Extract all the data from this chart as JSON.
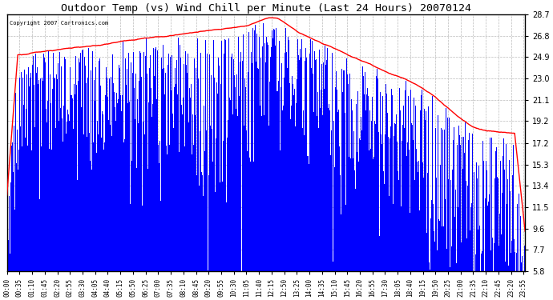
{
  "title": "Outdoor Temp (vs) Wind Chill per Minute (Last 24 Hours) 20070124",
  "copyright": "Copyright 2007 Cartronics.com",
  "yticks": [
    5.8,
    7.7,
    9.6,
    11.5,
    13.4,
    15.3,
    17.2,
    19.2,
    21.1,
    23.0,
    24.9,
    26.8,
    28.7
  ],
  "ymin": 5.8,
  "ymax": 28.7,
  "bg_color": "#FFFFFF",
  "bar_color": "#0000FF",
  "line_color": "#FF0000",
  "grid_color": "#AAAAAA",
  "title_color": "#000000",
  "fig_bg": "#FFFFFF",
  "copyright_color": "#000000"
}
